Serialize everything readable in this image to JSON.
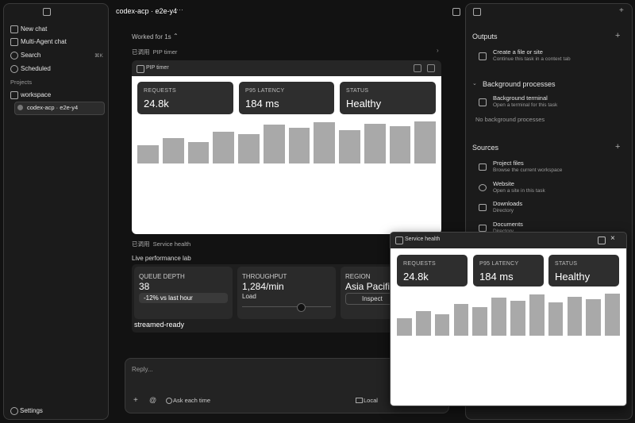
{
  "header": {
    "title": "codex-acp · e2e-y4"
  },
  "sidebar": {
    "nav": [
      {
        "label": "New chat"
      },
      {
        "label": "Multi-Agent chat"
      },
      {
        "label": "Search",
        "shortcut": "⌘K"
      },
      {
        "label": "Scheduled"
      }
    ],
    "projects_label": "Projects",
    "project": "workspace",
    "thread": "codex-acp · e2e-y4",
    "settings": "Settings"
  },
  "conversation": {
    "worked": "Worked for 1s",
    "tool_calls": [
      {
        "prefix": "已调用",
        "name": "PIP timer"
      },
      {
        "prefix": "已调用",
        "name": "Service health"
      }
    ],
    "pip_card": {
      "title": "PIP timer",
      "stats": [
        {
          "label": "REQUESTS",
          "value": "24.8k"
        },
        {
          "label": "P95 LATENCY",
          "value": "184 ms"
        },
        {
          "label": "STATUS",
          "value": "Healthy"
        }
      ],
      "bars": [
        23,
        32,
        27,
        40,
        37,
        49,
        45,
        52,
        42,
        50,
        47,
        53
      ]
    },
    "lab": {
      "title": "Live performance lab",
      "cards": [
        {
          "label": "QUEUE DEPTH",
          "value": "38",
          "note": "-12% vs last hour"
        },
        {
          "label": "THROUGHPUT",
          "value": "1,284/min",
          "note": "Load"
        },
        {
          "label": "REGION",
          "value": "Asia Pacific",
          "note": "Inspect"
        }
      ],
      "footer": "streamed-ready"
    }
  },
  "composer": {
    "placeholder": "Reply...",
    "mode": "Ask each time",
    "location": "Local"
  },
  "right_panel": {
    "outputs": {
      "title": "Outputs",
      "items": [
        {
          "title": "Create a file or site",
          "subtitle": "Continue this task in a context tab"
        }
      ]
    },
    "background": {
      "title": "Background processes",
      "items": [
        {
          "title": "Background terminal",
          "subtitle": "Open a terminal for this task"
        }
      ],
      "empty": "No background processes"
    },
    "sources": {
      "title": "Sources",
      "items": [
        {
          "title": "Project files",
          "subtitle": "Browse the current workspace"
        },
        {
          "title": "Website",
          "subtitle": "Open a site in this task"
        },
        {
          "title": "Downloads",
          "subtitle": "Directory"
        },
        {
          "title": "Documents",
          "subtitle": "Directory"
        }
      ]
    }
  },
  "overlay": {
    "title": "Service health",
    "stats": [
      {
        "label": "REQUESTS",
        "value": "24.8k"
      },
      {
        "label": "P95 LATENCY",
        "value": "184 ms"
      },
      {
        "label": "STATUS",
        "value": "Healthy"
      }
    ],
    "bars": [
      22,
      31,
      27,
      40,
      36,
      48,
      44,
      52,
      42,
      49,
      46,
      53
    ]
  }
}
